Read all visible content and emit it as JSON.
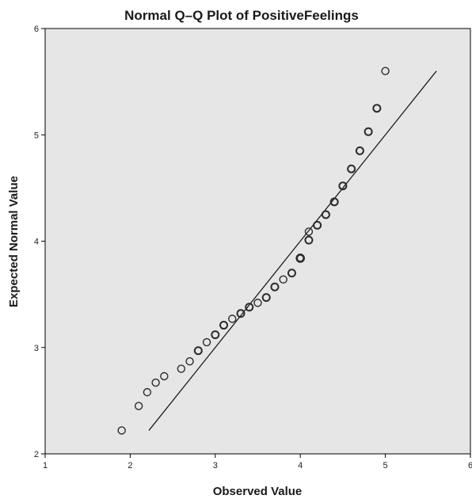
{
  "chart_data": {
    "type": "scatter",
    "title": "Normal Q–Q Plot of PositiveFeelings",
    "xlabel": "Observed Value",
    "ylabel": "Expected Normal Value",
    "xlim": [
      1,
      6
    ],
    "ylim": [
      2,
      6
    ],
    "xticks": [
      "1",
      "2",
      "3",
      "4",
      "5",
      "6"
    ],
    "yticks": [
      "2",
      "3",
      "4",
      "5",
      "6"
    ],
    "grid": false,
    "background": "#e6e6e6",
    "marker_color": "#2b2b2b",
    "line_color": "#1a1a1a",
    "points": [
      {
        "x": 1.9,
        "y": 2.22,
        "w": 1
      },
      {
        "x": 2.1,
        "y": 2.45,
        "w": 1
      },
      {
        "x": 2.2,
        "y": 2.58,
        "w": 1
      },
      {
        "x": 2.3,
        "y": 2.67,
        "w": 1
      },
      {
        "x": 2.4,
        "y": 2.73,
        "w": 1
      },
      {
        "x": 2.6,
        "y": 2.8,
        "w": 1
      },
      {
        "x": 2.7,
        "y": 2.87,
        "w": 1
      },
      {
        "x": 2.8,
        "y": 2.97,
        "w": 2
      },
      {
        "x": 2.9,
        "y": 3.05,
        "w": 1
      },
      {
        "x": 3.0,
        "y": 3.12,
        "w": 2
      },
      {
        "x": 3.1,
        "y": 3.21,
        "w": 2
      },
      {
        "x": 3.2,
        "y": 3.27,
        "w": 1
      },
      {
        "x": 3.3,
        "y": 3.32,
        "w": 2
      },
      {
        "x": 3.4,
        "y": 3.38,
        "w": 2
      },
      {
        "x": 3.5,
        "y": 3.42,
        "w": 1
      },
      {
        "x": 3.6,
        "y": 3.47,
        "w": 2
      },
      {
        "x": 3.7,
        "y": 3.57,
        "w": 2
      },
      {
        "x": 3.8,
        "y": 3.64,
        "w": 1
      },
      {
        "x": 3.9,
        "y": 3.7,
        "w": 2
      },
      {
        "x": 4.0,
        "y": 3.84,
        "w": 3
      },
      {
        "x": 4.1,
        "y": 4.01,
        "w": 2
      },
      {
        "x": 4.1,
        "y": 4.09,
        "w": 1
      },
      {
        "x": 4.2,
        "y": 4.15,
        "w": 2
      },
      {
        "x": 4.3,
        "y": 4.25,
        "w": 2
      },
      {
        "x": 4.4,
        "y": 4.37,
        "w": 2
      },
      {
        "x": 4.5,
        "y": 4.52,
        "w": 2
      },
      {
        "x": 4.6,
        "y": 4.68,
        "w": 2
      },
      {
        "x": 4.7,
        "y": 4.85,
        "w": 2
      },
      {
        "x": 4.8,
        "y": 5.03,
        "w": 2
      },
      {
        "x": 4.9,
        "y": 5.25,
        "w": 2
      },
      {
        "x": 5.0,
        "y": 5.6,
        "w": 1
      }
    ],
    "reference_line": {
      "x": [
        2.22,
        5.6
      ],
      "y": [
        2.22,
        5.6
      ]
    }
  }
}
